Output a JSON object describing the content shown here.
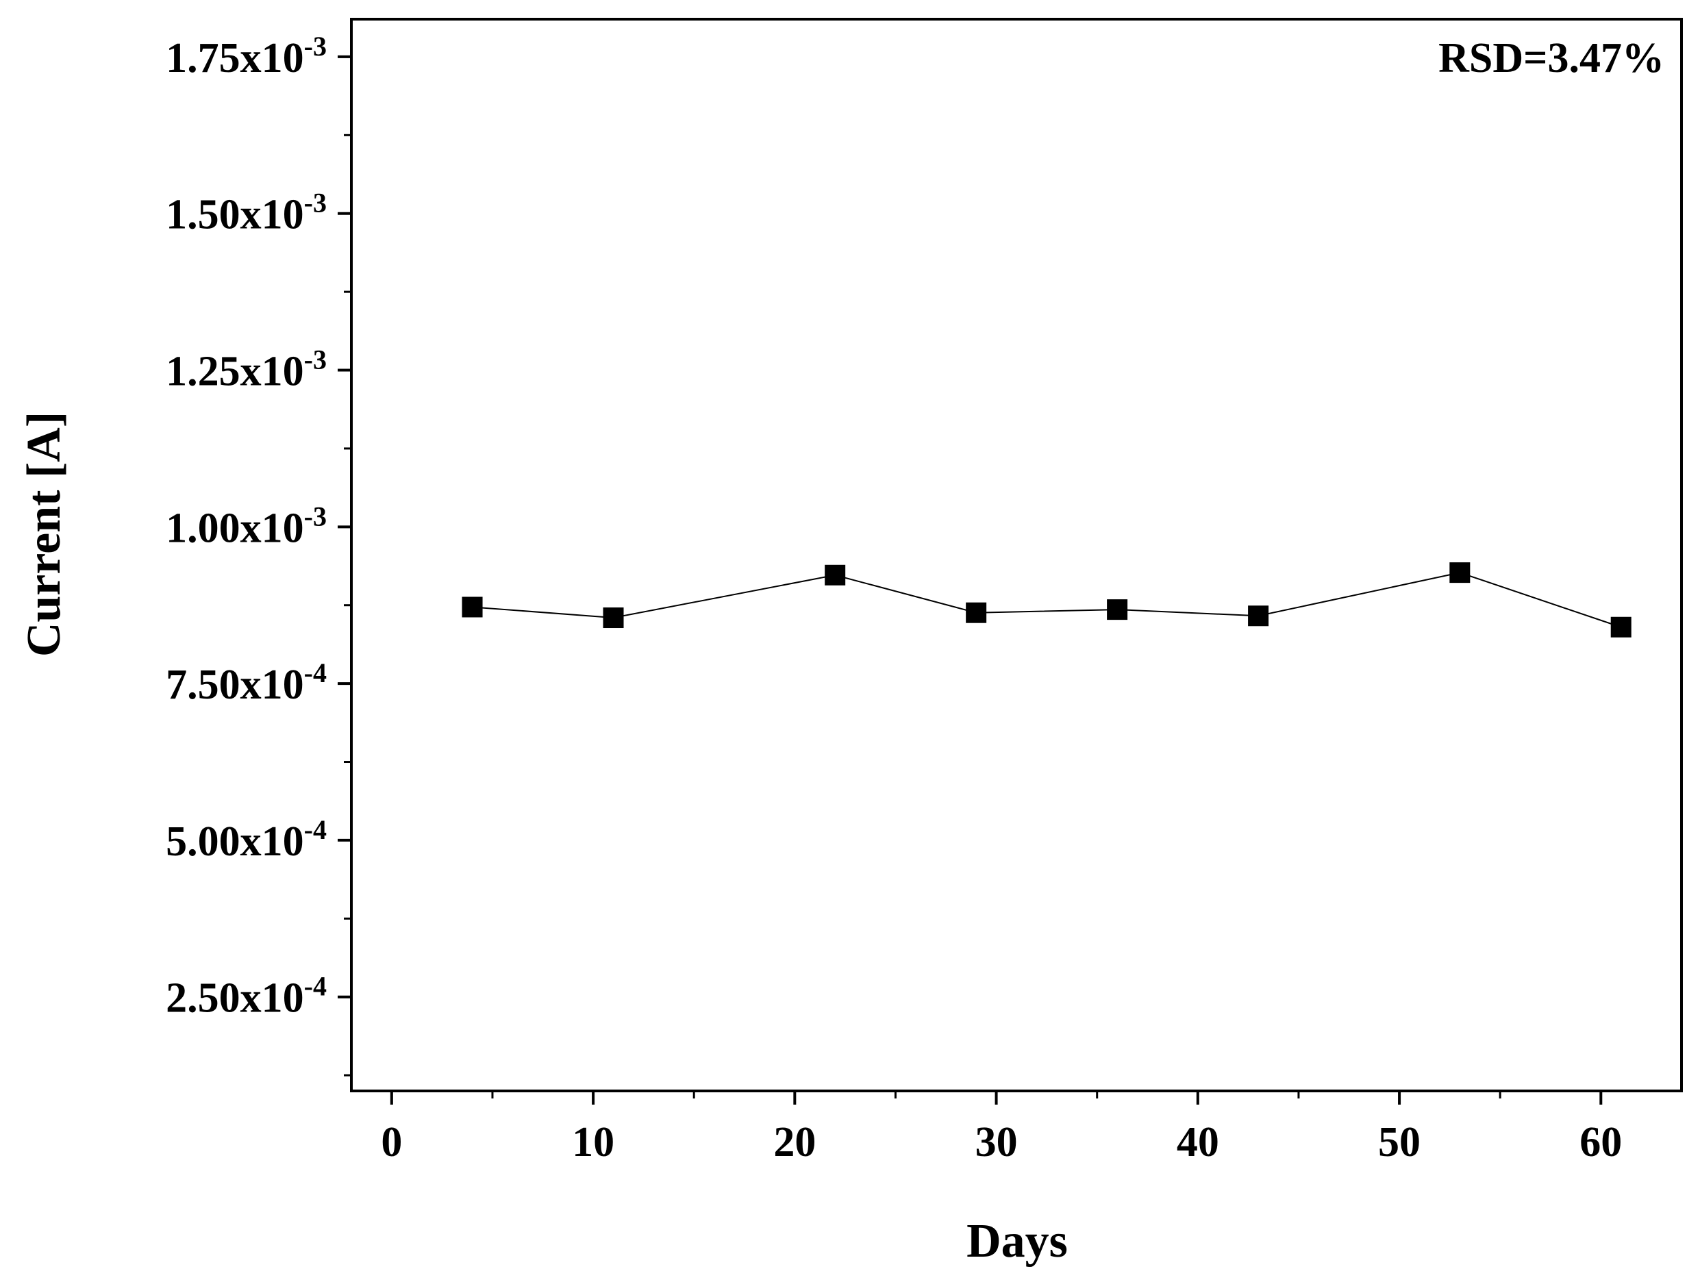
{
  "chart_data": {
    "type": "line",
    "title": "",
    "xlabel": "Days",
    "ylabel": "Current [A]",
    "annotation": "RSD=3.47%",
    "xlim": [
      -2,
      64
    ],
    "ylim": [
      0.0001,
      0.00181
    ],
    "xticks": [
      {
        "value": 0,
        "label": "0"
      },
      {
        "value": 10,
        "label": "10"
      },
      {
        "value": 20,
        "label": "20"
      },
      {
        "value": 30,
        "label": "30"
      },
      {
        "value": 40,
        "label": "40"
      },
      {
        "value": 50,
        "label": "50"
      },
      {
        "value": 60,
        "label": "60"
      }
    ],
    "yticks": [
      {
        "value": 0.00025,
        "mantissa": "2.50x10",
        "exponent": "-4"
      },
      {
        "value": 0.0005,
        "mantissa": "5.00x10",
        "exponent": "-4"
      },
      {
        "value": 0.00075,
        "mantissa": "7.50x10",
        "exponent": "-4"
      },
      {
        "value": 0.001,
        "mantissa": "1.00x10",
        "exponent": "-3"
      },
      {
        "value": 0.00125,
        "mantissa": "1.25x10",
        "exponent": "-3"
      },
      {
        "value": 0.0015,
        "mantissa": "1.50x10",
        "exponent": "-3"
      },
      {
        "value": 0.00175,
        "mantissa": "1.75x10",
        "exponent": "-3"
      }
    ],
    "series": [
      {
        "x": [
          4,
          11,
          22,
          29,
          36,
          43,
          53,
          61
        ],
        "y": [
          0.000872,
          0.000855,
          0.000923,
          0.000863,
          0.000868,
          0.000858,
          0.000927,
          0.00084
        ]
      }
    ],
    "marker": "square",
    "color": "#000000",
    "grid": false
  }
}
